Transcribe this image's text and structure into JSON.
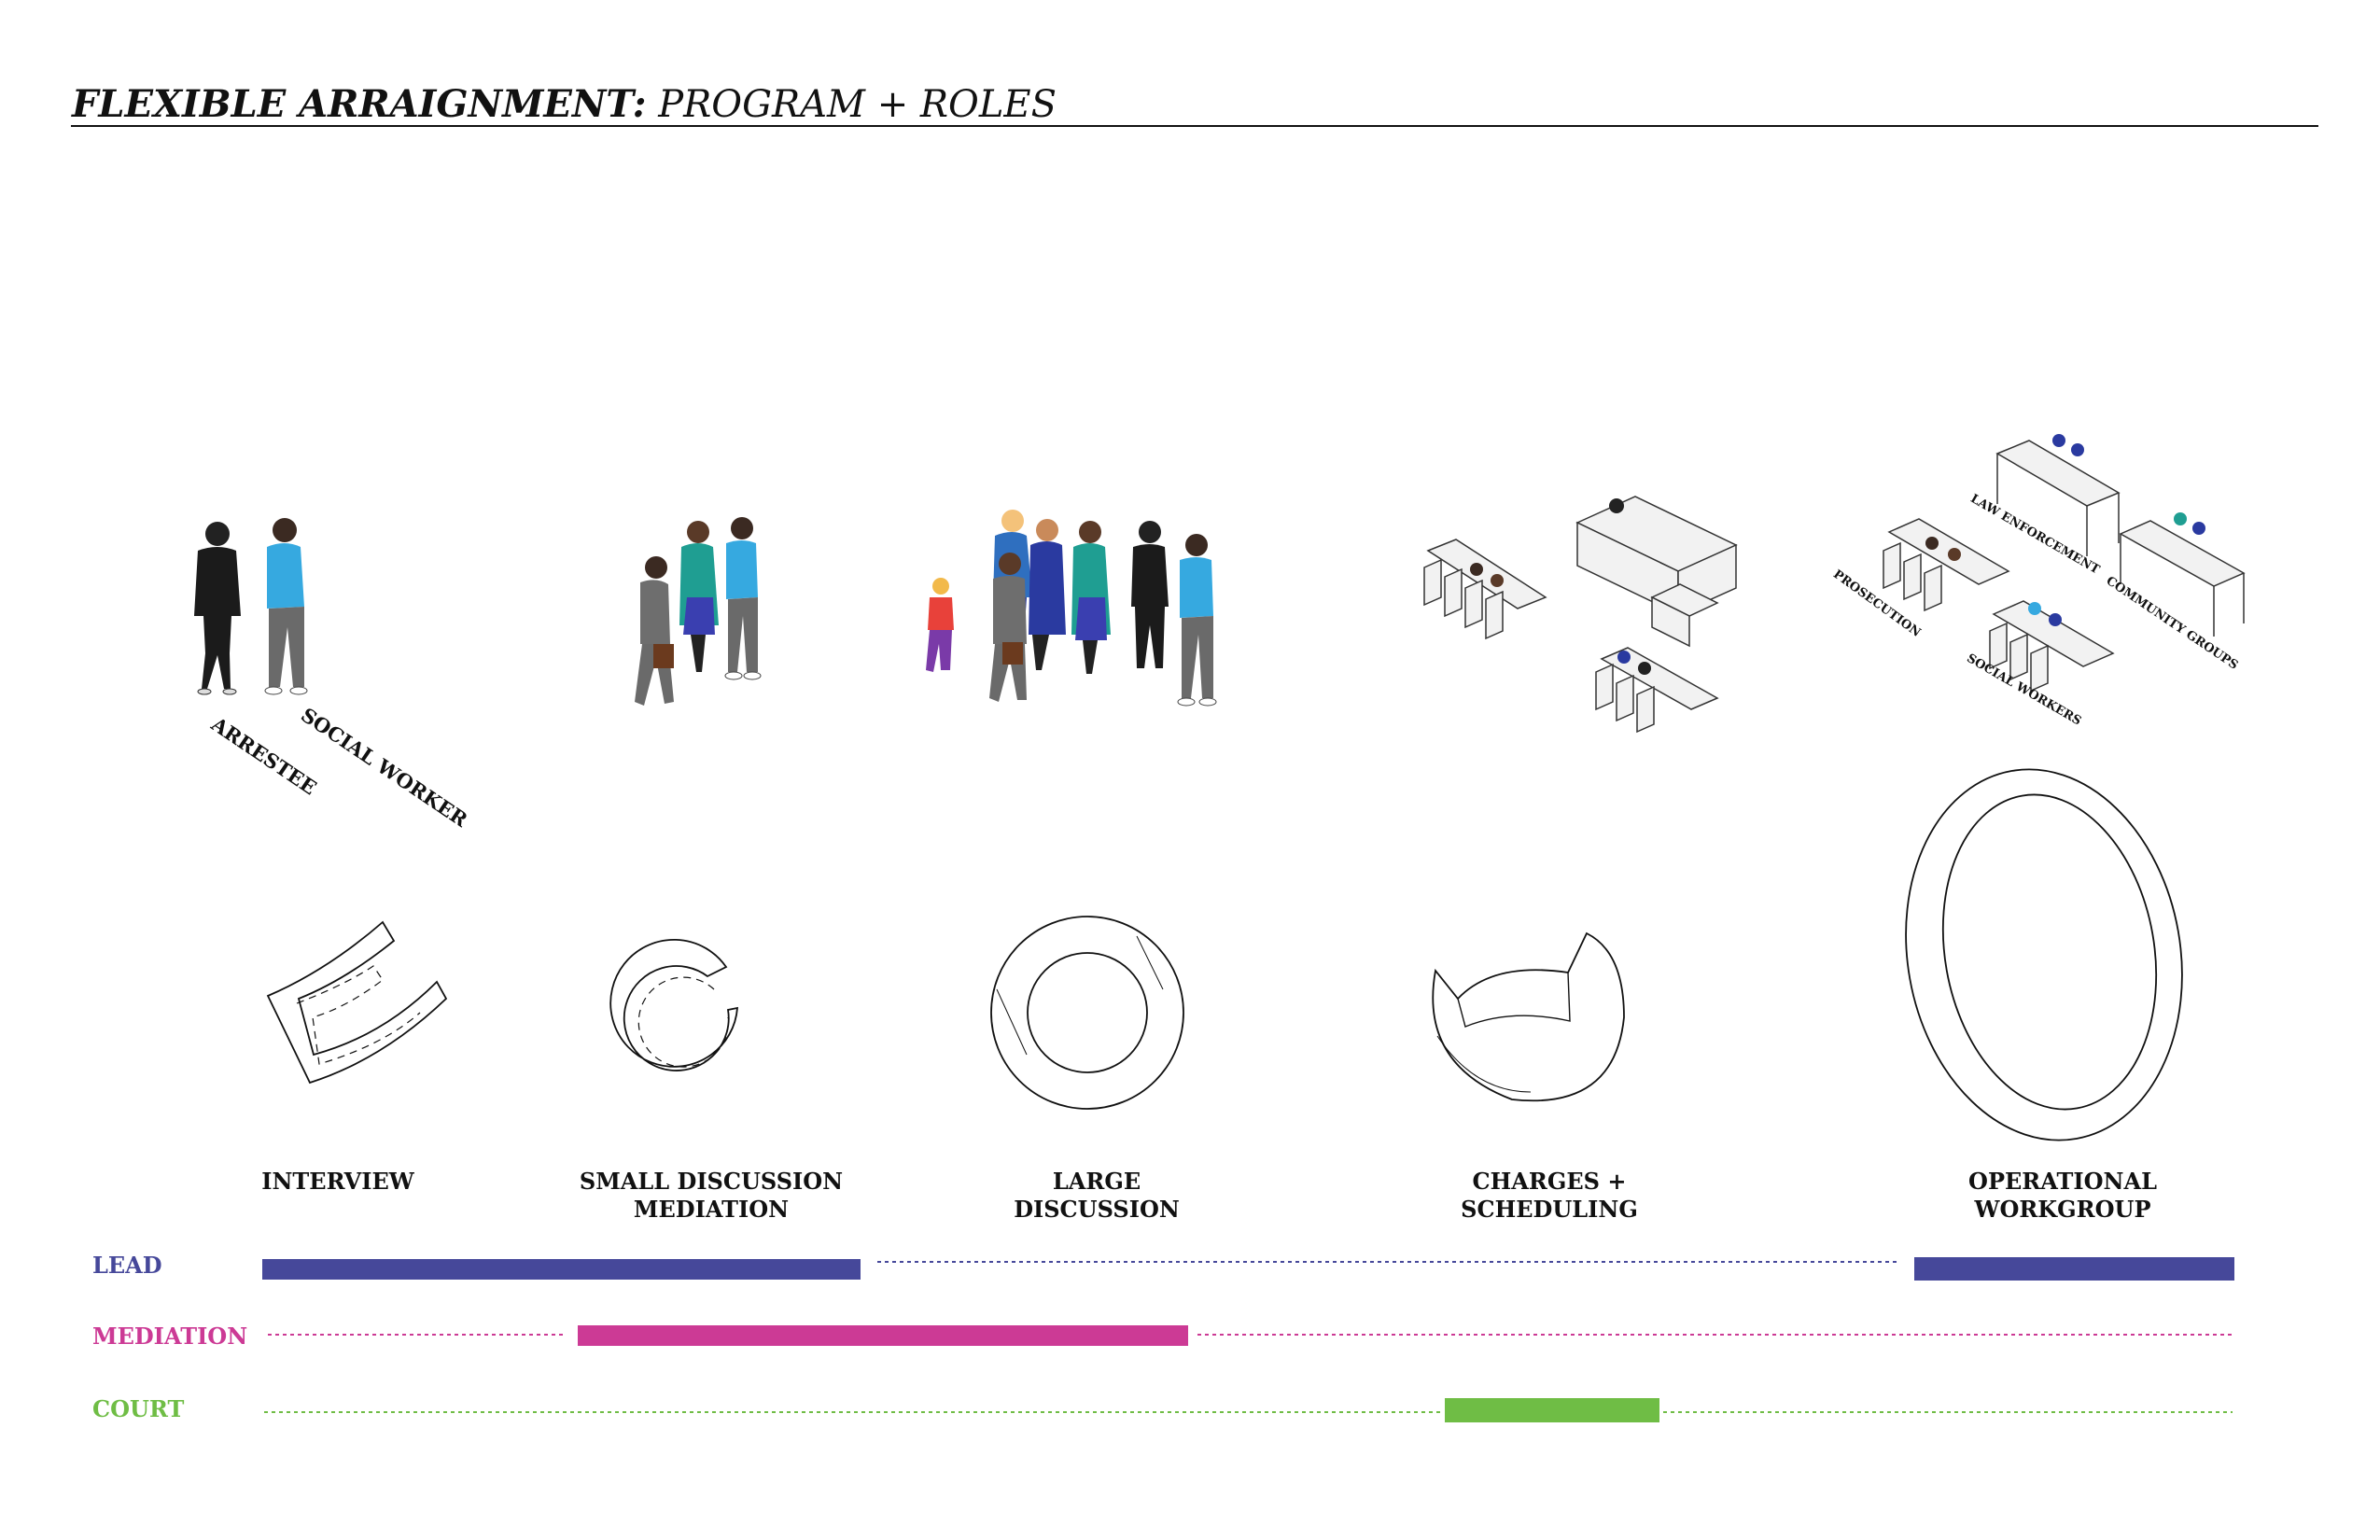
{
  "title": {
    "bold": "FLEXIBLE ARRAIGNMENT:",
    "rest": " PROGRAM + ROLES"
  },
  "figure_labels": {
    "interview": [
      "ARRESTEE",
      "SOCIAL WORKER"
    ],
    "operational": [
      "LAW ENFORCEMENT",
      "COMMUNITY GROUPS",
      "PROSECUTION",
      "SOCIAL WORKERS"
    ]
  },
  "programs": [
    {
      "line1": "INTERVIEW",
      "line2": ""
    },
    {
      "line1": "SMALL DISCUSSION",
      "line2": "MEDIATION"
    },
    {
      "line1": "LARGE",
      "line2": "DISCUSSION"
    },
    {
      "line1": "CHARGES +",
      "line2": "SCHEDULING"
    },
    {
      "line1": "OPERATIONAL",
      "line2": "WORKGROUP"
    }
  ],
  "roles": [
    {
      "name": "LEAD",
      "color": "#46489a",
      "active": [
        "INTERVIEW",
        "SMALL DISCUSSION",
        "OPERATIONAL WORKGROUP"
      ]
    },
    {
      "name": "MEDIATION",
      "color": "#cc3a95",
      "active": [
        "SMALL DISCUSSION",
        "LARGE DISCUSSION"
      ]
    },
    {
      "name": "COURT",
      "color": "#6fbd45",
      "active": [
        "CHARGES + SCHEDULING"
      ]
    }
  ]
}
